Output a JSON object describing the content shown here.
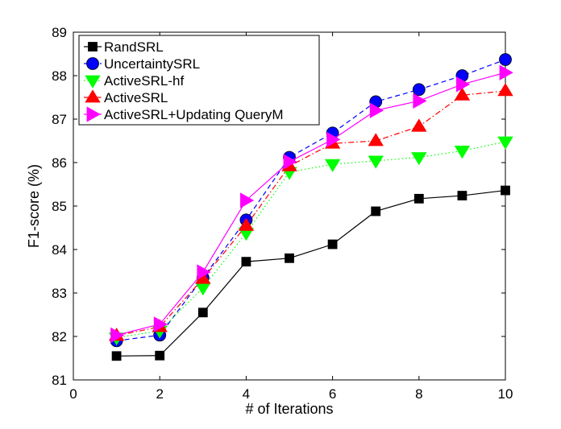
{
  "chart_data": {
    "type": "line",
    "title": "",
    "xlabel": "# of Iterations",
    "ylabel": "F1-score (%)",
    "xlim": [
      0,
      10
    ],
    "ylim": [
      81,
      89
    ],
    "xticks": [
      0,
      2,
      4,
      6,
      8,
      10
    ],
    "yticks": [
      81,
      82,
      83,
      84,
      85,
      86,
      87,
      88,
      89
    ],
    "grid": false,
    "legend_position": "top-left",
    "x": [
      1,
      2,
      3,
      4,
      5,
      6,
      7,
      8,
      9,
      10
    ],
    "series": [
      {
        "name": "RandSRL",
        "values": [
          81.55,
          81.56,
          82.55,
          83.72,
          83.8,
          84.12,
          84.88,
          85.17,
          85.24,
          85.36
        ],
        "color": "#000000",
        "marker": "square",
        "line_style": "solid"
      },
      {
        "name": "UncertaintySRL",
        "values": [
          81.9,
          82.03,
          83.35,
          84.68,
          86.12,
          86.68,
          87.4,
          87.68,
          88.0,
          88.37
        ],
        "color": "#0000ff",
        "marker": "circle",
        "line_style": "dashed"
      },
      {
        "name": "ActiveSRL-hf",
        "values": [
          81.97,
          82.13,
          83.12,
          84.38,
          85.78,
          85.96,
          86.04,
          86.12,
          86.27,
          86.48
        ],
        "color": "#00ff00",
        "marker": "triangle-down",
        "line_style": "dotted"
      },
      {
        "name": "ActiveSRL",
        "values": [
          82.02,
          82.22,
          83.33,
          84.55,
          85.92,
          86.44,
          86.5,
          86.83,
          87.55,
          87.65
        ],
        "color": "#ff0000",
        "marker": "triangle-up",
        "line_style": "dashdot"
      },
      {
        "name": "ActiveSRL+Updating QueryM",
        "values": [
          82.03,
          82.28,
          83.48,
          85.13,
          86.02,
          86.53,
          87.2,
          87.42,
          87.8,
          88.07
        ],
        "color": "#ff00ff",
        "marker": "triangle-right",
        "line_style": "solid"
      }
    ]
  }
}
